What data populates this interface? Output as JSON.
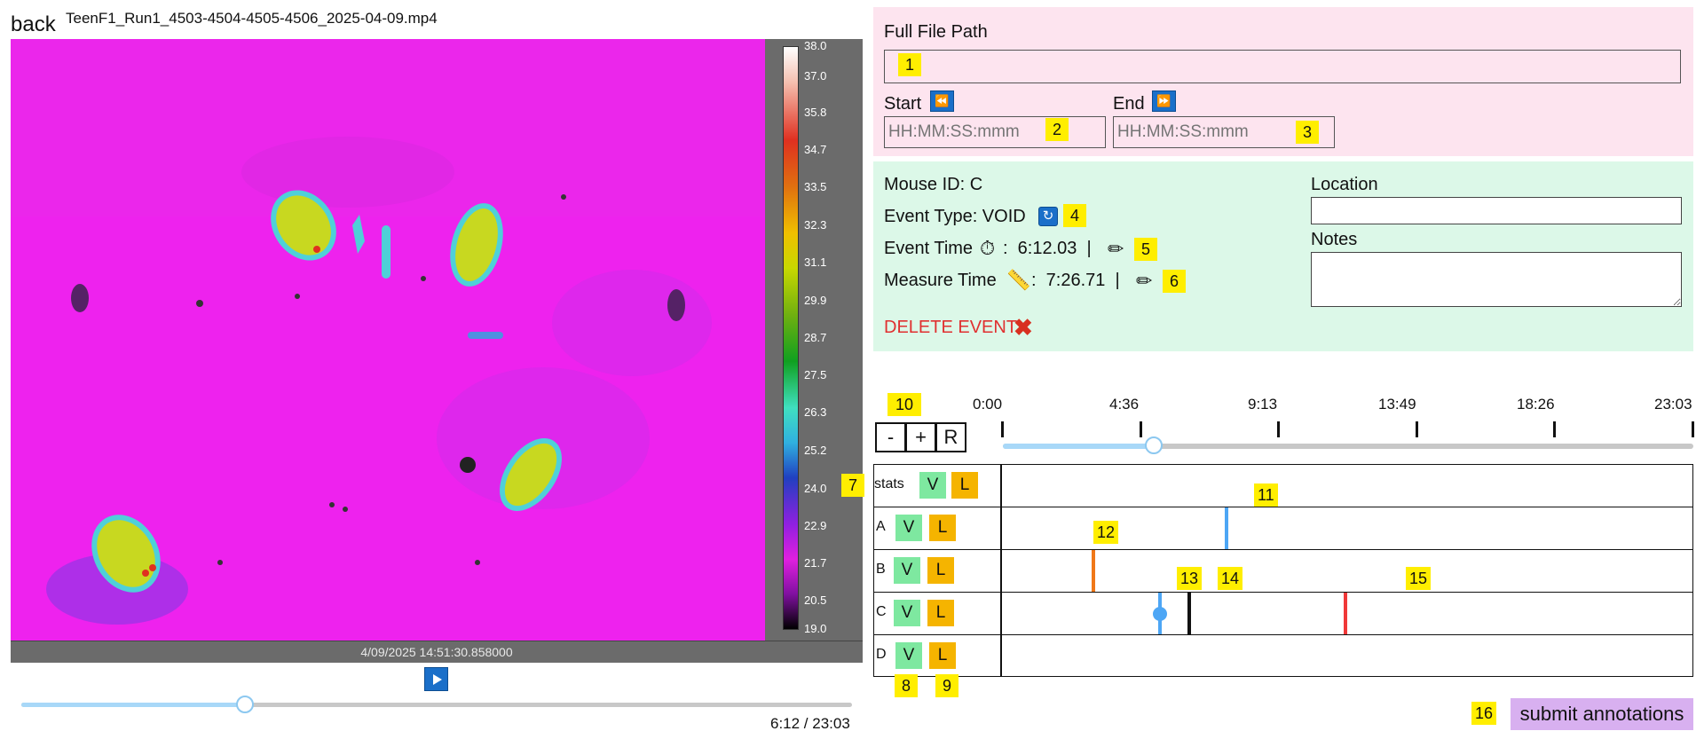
{
  "header": {
    "back_label": "back",
    "file_name": "TeenF1_Run1_4503-4504-4505-4506_2025-04-09.mp4"
  },
  "video": {
    "timestamp": "4/09/2025 14:51:30.858000",
    "current_time": "6:12 / 23:03",
    "progress": 0.269,
    "colorbar_labels": [
      "38.0",
      "37.0",
      "35.8",
      "34.7",
      "33.5",
      "32.3",
      "31.1",
      "29.9",
      "28.7",
      "27.5",
      "26.3",
      "25.2",
      "24.0",
      "22.9",
      "21.7",
      "20.5",
      "19.0"
    ]
  },
  "file_panel": {
    "path_label": "Full File Path",
    "path_value": "",
    "start_label": "Start",
    "end_label": "End",
    "start_placeholder": "HH:MM:SS:mmm",
    "end_placeholder": "HH:MM:SS:mmm",
    "start_jump_icon": "rewind-icon",
    "end_jump_icon": "fast-forward-icon"
  },
  "event_panel": {
    "mouse_id": "Mouse ID: C",
    "event_type": "Event Type: VOID",
    "event_time_label": "Event Time",
    "event_time_value": ":  6:12.03  |",
    "measure_time_label": "Measure Time",
    "measure_time_value": ":  7:26.71  |",
    "delete_label": "DELETE EVENT",
    "location_label": "Location",
    "notes_label": "Notes",
    "location_value": "",
    "notes_value": ""
  },
  "timeline": {
    "zoom_out": "-",
    "zoom_in": "+",
    "reset": "R",
    "ticks": [
      "0:00",
      "4:36",
      "9:13",
      "13:49",
      "18:26",
      "23:03"
    ],
    "progress": 0.219,
    "rows": [
      {
        "name": "stats",
        "v": "V",
        "l": "L"
      },
      {
        "name": "A",
        "v": "V",
        "l": "L"
      },
      {
        "name": "B",
        "v": "V",
        "l": "L"
      },
      {
        "name": "C",
        "v": "V",
        "l": "L"
      },
      {
        "name": "D",
        "v": "V",
        "l": "L"
      }
    ],
    "events": [
      {
        "row": 1,
        "at": 0.321,
        "color": "#4da6f5",
        "type": "V"
      },
      {
        "row": 2,
        "at": 0.127,
        "color": "#f07818",
        "type": "L"
      },
      {
        "row": 3,
        "at": 0.224,
        "color": "#4da6f5",
        "type": "V",
        "selected": true
      },
      {
        "row": 3,
        "at": 0.267,
        "color": "#111111",
        "type": "measure"
      },
      {
        "row": 3,
        "at": 0.493,
        "color": "#f03838",
        "type": "L"
      }
    ]
  },
  "submit_label": "submit annotations",
  "badges": [
    "1",
    "2",
    "3",
    "4",
    "5",
    "6",
    "7",
    "8",
    "9",
    "10",
    "11",
    "12",
    "13",
    "14",
    "15",
    "16"
  ],
  "colors": {
    "accent_blue": "#1a6fc9",
    "pink_panel": "#fde4ef",
    "green_panel": "#dcf8e8",
    "submit": "#d8b0f0",
    "badge": "#ffee00"
  }
}
